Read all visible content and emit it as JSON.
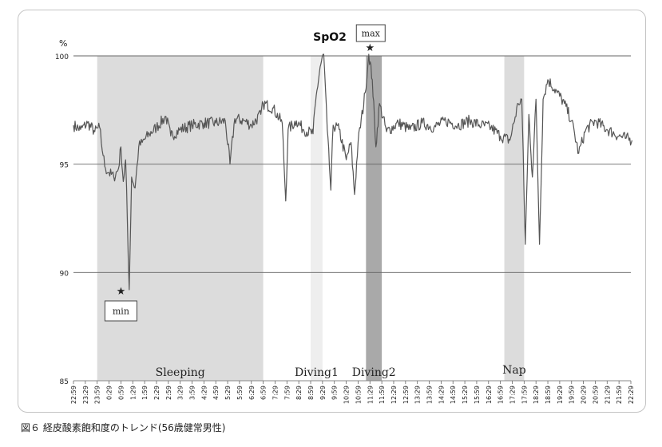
{
  "caption": "図６ 経皮酸素飽和度のトレンド(56歳健常男性)",
  "chart_data": {
    "type": "line",
    "title": "SpO2",
    "ylabel": "%",
    "ylim": [
      85,
      100
    ],
    "yticks": [
      85,
      90,
      95,
      100
    ],
    "grid": "horizontal",
    "xticks": [
      "22:59",
      "23:29",
      "23:59",
      "0:29",
      "0:59",
      "1:29",
      "1:59",
      "2:29",
      "2:59",
      "3:29",
      "3:59",
      "4:29",
      "4:59",
      "5:29",
      "5:59",
      "6:29",
      "6:59",
      "7:29",
      "7:59",
      "8:29",
      "8:59",
      "9:29",
      "9:59",
      "10:29",
      "10:59",
      "11:29",
      "11:59",
      "12:29",
      "12:59",
      "13:29",
      "13:59",
      "14:29",
      "14:59",
      "15:29",
      "15:59",
      "16:29",
      "16:59",
      "17:29",
      "17:59",
      "18:29",
      "18:59",
      "19:29",
      "19:59",
      "20:29",
      "20:59",
      "21:29",
      "21:59",
      "22:29"
    ],
    "regions": [
      {
        "label": "Sleeping",
        "start": "23:59",
        "end": "6:59",
        "shade": "light"
      },
      {
        "label": "Diving1",
        "start": "8:59",
        "end": "9:29",
        "shade": "pale"
      },
      {
        "label": "Diving2",
        "start": "11:19",
        "end": "11:59",
        "shade": "dark"
      },
      {
        "label": "Nap",
        "start": "17:09",
        "end": "17:59",
        "shade": "light"
      }
    ],
    "annotations": [
      {
        "label": "min",
        "time": "0:59",
        "value": 89.2
      },
      {
        "label": "max",
        "time": "11:29",
        "value": 100.4
      }
    ],
    "series": [
      {
        "points": [
          [
            0,
            96.8
          ],
          [
            0.3,
            96.6
          ],
          [
            0.6,
            96.9
          ],
          [
            0.9,
            96.5
          ],
          [
            1.1,
            96.7
          ],
          [
            1.25,
            95.4
          ],
          [
            1.35,
            94.8
          ],
          [
            1.5,
            94.6
          ],
          [
            1.7,
            94.4
          ],
          [
            1.9,
            94.8
          ],
          [
            2.0,
            95.8
          ],
          [
            2.1,
            94.2
          ],
          [
            2.2,
            95.2
          ],
          [
            2.35,
            89.2
          ],
          [
            2.45,
            94.4
          ],
          [
            2.6,
            93.9
          ],
          [
            2.75,
            95.8
          ],
          [
            2.9,
            96.0
          ],
          [
            3.2,
            96.4
          ],
          [
            3.5,
            96.7
          ],
          [
            3.9,
            97.2
          ],
          [
            4.1,
            96.3
          ],
          [
            4.5,
            96.6
          ],
          [
            5.0,
            96.8
          ],
          [
            5.5,
            96.9
          ],
          [
            6.0,
            96.9
          ],
          [
            6.4,
            97.0
          ],
          [
            6.6,
            95.0
          ],
          [
            6.8,
            97.1
          ],
          [
            7.2,
            97.0
          ],
          [
            7.5,
            96.8
          ],
          [
            7.9,
            97.3
          ],
          [
            8.0,
            97.8
          ],
          [
            8.4,
            97.6
          ],
          [
            8.8,
            96.9
          ],
          [
            8.95,
            93.3
          ],
          [
            9.05,
            96.6
          ],
          [
            9.4,
            97.0
          ],
          [
            9.7,
            96.6
          ],
          [
            10.1,
            96.4
          ],
          [
            10.2,
            97.8
          ],
          [
            10.4,
            99.5
          ],
          [
            10.55,
            100.1
          ],
          [
            10.7,
            96.6
          ],
          [
            10.85,
            93.8
          ],
          [
            10.95,
            96.8
          ],
          [
            11.2,
            96.6
          ],
          [
            11.5,
            95.2
          ],
          [
            11.7,
            96.0
          ],
          [
            11.85,
            93.6
          ],
          [
            12.0,
            96.0
          ],
          [
            12.3,
            98.3
          ],
          [
            12.45,
            100.1
          ],
          [
            12.6,
            98.9
          ],
          [
            12.75,
            95.8
          ],
          [
            12.9,
            97.8
          ],
          [
            13.2,
            96.5
          ],
          [
            13.7,
            96.9
          ],
          [
            14.2,
            96.6
          ],
          [
            14.7,
            96.9
          ],
          [
            15.2,
            96.7
          ],
          [
            15.7,
            97.0
          ],
          [
            16.2,
            96.8
          ],
          [
            16.7,
            97.0
          ],
          [
            17.2,
            96.8
          ],
          [
            17.6,
            96.7
          ],
          [
            18.0,
            96.3
          ],
          [
            18.4,
            96.1
          ],
          [
            18.75,
            97.8
          ],
          [
            18.9,
            98.0
          ],
          [
            19.05,
            91.3
          ],
          [
            19.2,
            97.3
          ],
          [
            19.35,
            94.4
          ],
          [
            19.5,
            98.0
          ],
          [
            19.65,
            91.3
          ],
          [
            19.8,
            98.0
          ],
          [
            20.0,
            98.9
          ],
          [
            20.4,
            98.3
          ],
          [
            20.7,
            97.8
          ],
          [
            21.0,
            97.0
          ],
          [
            21.3,
            95.5
          ],
          [
            21.6,
            96.6
          ],
          [
            22.0,
            97.0
          ],
          [
            22.5,
            96.6
          ],
          [
            23.0,
            96.3
          ],
          [
            23.3,
            96.2
          ],
          [
            23.55,
            96.1
          ]
        ]
      }
    ]
  }
}
